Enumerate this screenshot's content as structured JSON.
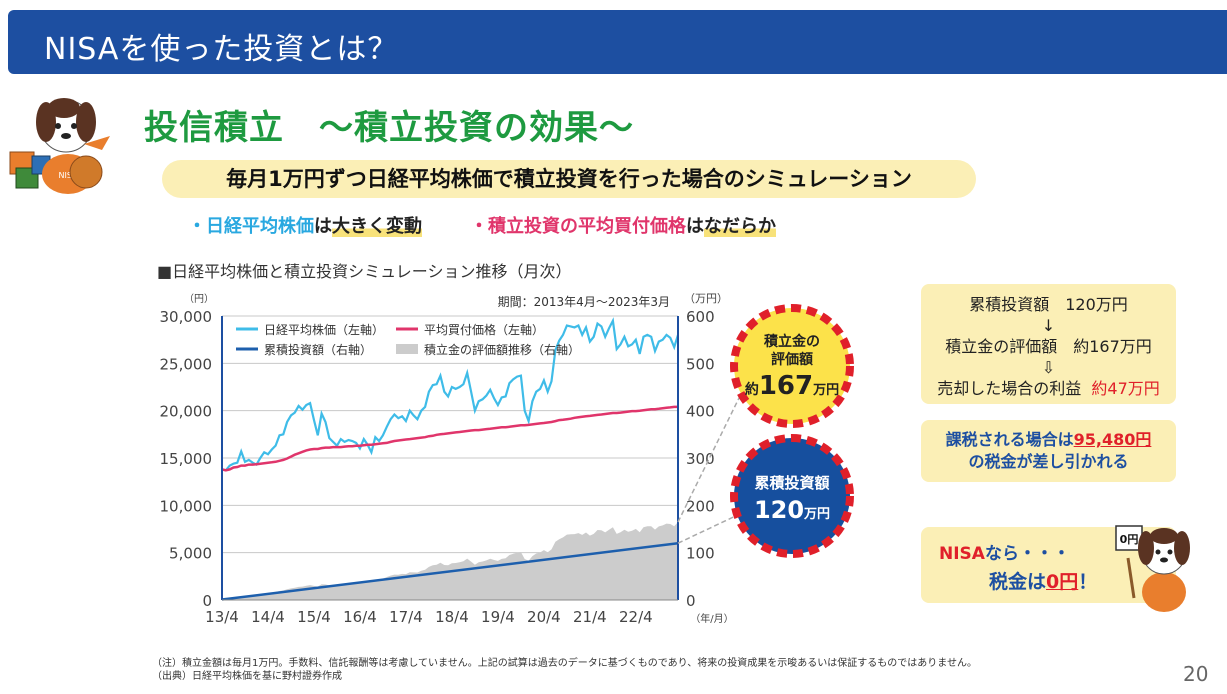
{
  "header": {
    "title": "NISAを使った投資とは？"
  },
  "section": {
    "title": "投信積立　～積立投資の効果～",
    "subtitle": "毎月1万円ずつ日経平均株価で積立投資を行った場合のシミュレーション",
    "point1": {
      "prefix": "・日経平均株価",
      "mid": "は",
      "emph": "大きく変動"
    },
    "point2": {
      "prefix": "・積立投資の平均買付価格",
      "mid": "は",
      "emph": "なだらか"
    }
  },
  "chart_caption": "■日経平均株価と積立投資シミュレーション推移（月次）",
  "chart_data": {
    "type": "line",
    "period": "期間：2013年4月～2023年3月",
    "left_unit": "（円）",
    "right_unit": "（万円）",
    "x_unit": "（年/月）",
    "x_ticks": [
      "13/4",
      "14/4",
      "15/4",
      "16/4",
      "17/4",
      "18/4",
      "19/4",
      "20/4",
      "21/4",
      "22/4"
    ],
    "y_left_ticks": [
      "0",
      "5,000",
      "10,000",
      "15,000",
      "20,000",
      "25,000",
      "30,000"
    ],
    "y_right_ticks": [
      "0",
      "100",
      "200",
      "300",
      "400",
      "500",
      "600"
    ],
    "ylim_left": [
      0,
      30000
    ],
    "ylim_right": [
      0,
      600
    ],
    "legend": [
      {
        "label": "日経平均株価（左軸）",
        "color": "#3fbce8",
        "kind": "line"
      },
      {
        "label": "平均買付価格（左軸）",
        "color": "#e0356b",
        "kind": "line"
      },
      {
        "label": "累積投資額（右軸）",
        "color": "#1d5fad",
        "kind": "line"
      },
      {
        "label": "積立金の評価額推移（右軸）",
        "color": "#cccccc",
        "kind": "area"
      }
    ],
    "series": [
      {
        "name": "日経平均株価（左軸）",
        "axis": "left",
        "values": [
          13800,
          13700,
          14200,
          14400,
          14500,
          15700,
          14600,
          14800,
          14500,
          14300,
          15000,
          15600,
          15400,
          15900,
          16300,
          17400,
          17500,
          18800,
          19500,
          19800,
          20500,
          20100,
          20600,
          20800,
          19000,
          17400,
          19700,
          18800,
          17100,
          16700,
          16300,
          17000,
          16700,
          16900,
          16800,
          16600,
          16000,
          17000,
          16400,
          15600,
          17200,
          16800,
          17400,
          18300,
          19100,
          19600,
          19200,
          19400,
          18900,
          20000,
          19500,
          19100,
          20000,
          20400,
          22000,
          22700,
          22800,
          23700,
          22000,
          21500,
          22500,
          22300,
          22500,
          22800,
          24000,
          22000,
          20000,
          21000,
          21200,
          21600,
          22200,
          21300,
          20600,
          21400,
          21500,
          22900,
          23300,
          23600,
          23700,
          20000,
          18900,
          21000,
          22000,
          22300,
          23200,
          22000,
          23100,
          26400,
          27400,
          28000,
          29000,
          28900,
          28800,
          29000,
          28000,
          28800,
          27300,
          27800,
          29200,
          28900,
          27800,
          28700,
          29500,
          26500,
          27000,
          27800,
          26800,
          27000,
          27500,
          26000,
          27800,
          28000,
          27800,
          26300,
          27300,
          27500,
          28000,
          27700,
          26700,
          28000
        ]
      },
      {
        "name": "平均買付価格（左軸）",
        "axis": "left",
        "values": [
          13800,
          13700,
          13800,
          14000,
          14050,
          14200,
          14200,
          14300,
          14300,
          14350,
          14400,
          14450,
          14500,
          14550,
          14600,
          14700,
          14800,
          14950,
          15150,
          15350,
          15500,
          15650,
          15800,
          15900,
          15950,
          15950,
          16050,
          16100,
          16100,
          16150,
          16150,
          16150,
          16200,
          16250,
          16250,
          16300,
          16300,
          16350,
          16400,
          16400,
          16450,
          16500,
          16550,
          16600,
          16700,
          16800,
          16850,
          16900,
          16950,
          17000,
          17050,
          17100,
          17150,
          17200,
          17300,
          17350,
          17450,
          17500,
          17550,
          17600,
          17650,
          17700,
          17750,
          17800,
          17850,
          17900,
          17950,
          17950,
          18000,
          18050,
          18100,
          18150,
          18200,
          18250,
          18250,
          18300,
          18350,
          18400,
          18450,
          18450,
          18500,
          18550,
          18600,
          18650,
          18700,
          18750,
          18800,
          18900,
          19000,
          19050,
          19100,
          19150,
          19250,
          19300,
          19350,
          19400,
          19450,
          19500,
          19550,
          19600,
          19650,
          19700,
          19750,
          19750,
          19800,
          19850,
          19900,
          19950,
          19950,
          20000,
          20050,
          20100,
          20150,
          20150,
          20200,
          20250,
          20300,
          20350,
          20400,
          20400
        ]
      },
      {
        "name": "累積投資額（右軸）",
        "axis": "right",
        "start": 1,
        "end": 120
      },
      {
        "name": "積立金の評価額推移（右軸）",
        "axis": "right",
        "final": 167
      }
    ],
    "grid": true
  },
  "badges": {
    "valuation": {
      "l1": "積立金の",
      "l2": "評価額",
      "pre": "約",
      "num": "167",
      "unit": "万円"
    },
    "invested": {
      "l1": "累積投資額",
      "num": "120",
      "unit": "万円"
    }
  },
  "info_box": {
    "line1": "累積投資額　120万円",
    "arrow1": "↓",
    "line2": "積立金の評価額　約167万円",
    "arrow2": "⇩",
    "line3_prefix": "売却した場合の利益",
    "line3_amount": "約47万円"
  },
  "tax_box": {
    "prefix": "課税される場合は",
    "amount": "95,480円",
    "line2": "の税金が差し引かれる"
  },
  "nisa_box": {
    "nisa": "NISA",
    "nara": "なら・・・",
    "tax": "税金は",
    "zero": "0円",
    "excl": "！"
  },
  "footnote": {
    "line1": "（注）積立金額は毎月1万円。手数料、信託報酬等は考慮していません。上記の試算は過去のデータに基づくものであり、将来の投資成果を示唆あるいは保証するものではありません。",
    "line2": "（出典）日経平均株価を基に野村證券作成"
  },
  "page_number": "20",
  "mascot_sign": "0円",
  "colors": {
    "header_bg": "#1d4fa1",
    "title_green": "#1e9a40",
    "pill_bg": "#fbefb6",
    "nikkei": "#3fbce8",
    "avg_price": "#e0356b",
    "cumulative": "#1d5fad",
    "valuation_area": "#cccccc",
    "badge_yellow": "#fce24a",
    "badge_blue": "#164f9e",
    "badge_ring_red": "#e0202a"
  }
}
